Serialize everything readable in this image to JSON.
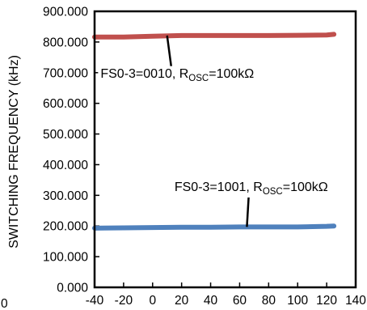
{
  "chart_data": {
    "type": "line",
    "title": "",
    "xlabel": "",
    "ylabel": "SWITCHING FREQUENCY (kHz)",
    "xlim": [
      -40,
      140
    ],
    "ylim": [
      0,
      900
    ],
    "x_ticks": [
      -40,
      -20,
      0,
      20,
      40,
      60,
      80,
      100,
      120,
      140
    ],
    "x_tick_labels": [
      "-40",
      "-20",
      "0",
      "20",
      "40",
      "60",
      "80",
      "100",
      "120",
      "140"
    ],
    "y_ticks": [
      0,
      100,
      200,
      300,
      400,
      500,
      600,
      700,
      800,
      900
    ],
    "y_tick_labels": [
      "0.000",
      "100.000",
      "200.000",
      "300.000",
      "400.000",
      "500.000",
      "600.000",
      "700.000",
      "800.000",
      "900.000"
    ],
    "stray_label": "0",
    "grid": false,
    "series": [
      {
        "color": "#C0504D",
        "x": [
          -40,
          -20,
          0,
          20,
          40,
          60,
          80,
          100,
          120,
          125
        ],
        "y": [
          816,
          816,
          819,
          821,
          821,
          821,
          821,
          822,
          823,
          825
        ]
      },
      {
        "color": "#4F81BD",
        "x": [
          -40,
          -20,
          0,
          20,
          40,
          60,
          80,
          100,
          120,
          125
        ],
        "y": [
          193,
          194,
          195,
          196,
          196,
          197,
          197,
          197,
          199,
          200
        ]
      }
    ],
    "annotations": [
      {
        "text": "FS0-3=0010, R",
        "sub": "OSC",
        "tail": "=100kΩ",
        "at": [
          17,
          700
        ],
        "arrow_to": [
          10,
          821
        ]
      },
      {
        "text": "FS0-3=1001, R",
        "sub": "OSC",
        "tail": "=100kΩ",
        "at": [
          68,
          330
        ],
        "arrow_to": [
          65,
          197
        ]
      }
    ]
  }
}
